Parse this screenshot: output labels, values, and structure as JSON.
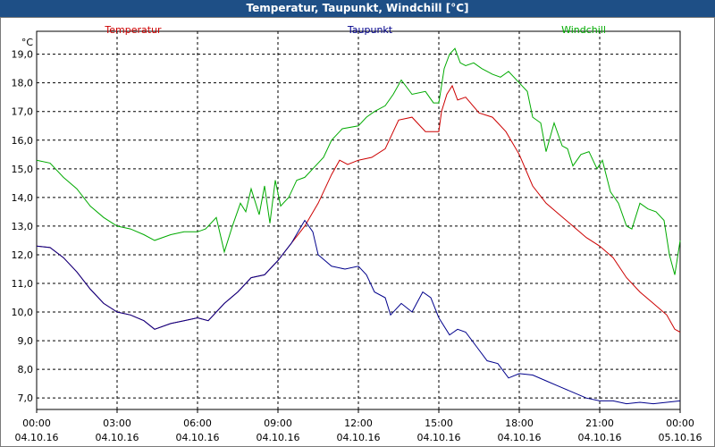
{
  "window": {
    "title": "Temperatur, Taupunkt, Windchill [°C]"
  },
  "chart_data": {
    "type": "line",
    "title": "Temperatur, Taupunkt, Windchill [°C]",
    "ylabel": "°C",
    "xlabel": "",
    "ylim": [
      6.6,
      19.8
    ],
    "xlim": [
      0,
      24
    ],
    "grid": true,
    "legend": "top",
    "y_ticks": [
      7.0,
      8.0,
      9.0,
      10.0,
      11.0,
      12.0,
      13.0,
      14.0,
      15.0,
      16.0,
      17.0,
      18.0,
      19.0
    ],
    "y_tick_labels": [
      "7,0",
      "8,0",
      "9,0",
      "10,0",
      "11,0",
      "12,0",
      "13,0",
      "14,0",
      "15,0",
      "16,0",
      "17,0",
      "18,0",
      "19,0"
    ],
    "x_ticks": [
      {
        "x": 0,
        "time": "00:00",
        "date": "04.10.16"
      },
      {
        "x": 3,
        "time": "03:00",
        "date": "04.10.16"
      },
      {
        "x": 6,
        "time": "06:00",
        "date": "04.10.16"
      },
      {
        "x": 9,
        "time": "09:00",
        "date": "04.10.16"
      },
      {
        "x": 12,
        "time": "12:00",
        "date": "04.10.16"
      },
      {
        "x": 15,
        "time": "15:00",
        "date": "04.10.16"
      },
      {
        "x": 18,
        "time": "18:00",
        "date": "04.10.16"
      },
      {
        "x": 21,
        "time": "21:00",
        "date": "04.10.16"
      },
      {
        "x": 24,
        "time": "00:00",
        "date": "05.10.16"
      }
    ],
    "series": [
      {
        "name": "Temperatur",
        "color": "#cc0000",
        "points": [
          [
            0,
            12.3
          ],
          [
            0.5,
            12.25
          ],
          [
            1,
            11.9
          ],
          [
            1.5,
            11.4
          ],
          [
            2,
            10.8
          ],
          [
            2.5,
            10.3
          ],
          [
            3,
            10.0
          ],
          [
            3.5,
            9.9
          ],
          [
            4,
            9.7
          ],
          [
            4.4,
            9.4
          ],
          [
            5,
            9.6
          ],
          [
            5.5,
            9.7
          ],
          [
            6,
            9.8
          ],
          [
            6.4,
            9.7
          ],
          [
            7,
            10.3
          ],
          [
            7.5,
            10.7
          ],
          [
            8,
            11.2
          ],
          [
            8.5,
            11.3
          ],
          [
            9,
            11.8
          ],
          [
            9.5,
            12.4
          ],
          [
            10,
            13.0
          ],
          [
            10.5,
            13.8
          ],
          [
            11,
            14.8
          ],
          [
            11.3,
            15.3
          ],
          [
            11.6,
            15.15
          ],
          [
            12,
            15.3
          ],
          [
            12.5,
            15.4
          ],
          [
            13,
            15.7
          ],
          [
            13.5,
            16.7
          ],
          [
            14,
            16.8
          ],
          [
            14.5,
            16.3
          ],
          [
            15,
            16.3
          ],
          [
            15.1,
            17.0
          ],
          [
            15.3,
            17.6
          ],
          [
            15.5,
            17.9
          ],
          [
            15.7,
            17.4
          ],
          [
            16,
            17.5
          ],
          [
            16.5,
            16.95
          ],
          [
            17,
            16.8
          ],
          [
            17.5,
            16.3
          ],
          [
            18,
            15.5
          ],
          [
            18.5,
            14.4
          ],
          [
            19,
            13.8
          ],
          [
            19.5,
            13.4
          ],
          [
            20,
            13.0
          ],
          [
            20.5,
            12.6
          ],
          [
            21,
            12.3
          ],
          [
            21.5,
            11.9
          ],
          [
            22,
            11.2
          ],
          [
            22.5,
            10.7
          ],
          [
            23,
            10.3
          ],
          [
            23.5,
            9.9
          ],
          [
            23.8,
            9.4
          ],
          [
            24,
            9.3
          ]
        ]
      },
      {
        "name": "Taupunkt",
        "color": "#00008b",
        "points": [
          [
            0,
            12.3
          ],
          [
            0.5,
            12.25
          ],
          [
            1,
            11.9
          ],
          [
            1.5,
            11.4
          ],
          [
            2,
            10.8
          ],
          [
            2.5,
            10.3
          ],
          [
            3,
            10.0
          ],
          [
            3.5,
            9.9
          ],
          [
            4,
            9.7
          ],
          [
            4.4,
            9.4
          ],
          [
            5,
            9.6
          ],
          [
            5.5,
            9.7
          ],
          [
            6,
            9.8
          ],
          [
            6.4,
            9.7
          ],
          [
            7,
            10.3
          ],
          [
            7.5,
            10.7
          ],
          [
            8,
            11.2
          ],
          [
            8.5,
            11.3
          ],
          [
            9,
            11.8
          ],
          [
            9.5,
            12.4
          ],
          [
            10,
            13.2
          ],
          [
            10.3,
            12.8
          ],
          [
            10.5,
            12.0
          ],
          [
            11,
            11.6
          ],
          [
            11.5,
            11.5
          ],
          [
            12,
            11.6
          ],
          [
            12.3,
            11.3
          ],
          [
            12.6,
            10.7
          ],
          [
            13,
            10.5
          ],
          [
            13.2,
            9.9
          ],
          [
            13.6,
            10.3
          ],
          [
            14,
            10.0
          ],
          [
            14.4,
            10.7
          ],
          [
            14.7,
            10.5
          ],
          [
            15,
            9.8
          ],
          [
            15.4,
            9.2
          ],
          [
            15.7,
            9.4
          ],
          [
            16,
            9.3
          ],
          [
            16.4,
            8.8
          ],
          [
            16.8,
            8.3
          ],
          [
            17.2,
            8.2
          ],
          [
            17.6,
            7.7
          ],
          [
            18,
            7.85
          ],
          [
            18.5,
            7.8
          ],
          [
            19,
            7.6
          ],
          [
            19.5,
            7.4
          ],
          [
            20,
            7.2
          ],
          [
            20.5,
            7.0
          ],
          [
            21,
            6.9
          ],
          [
            21.5,
            6.9
          ],
          [
            22,
            6.8
          ],
          [
            22.5,
            6.85
          ],
          [
            23,
            6.8
          ],
          [
            23.5,
            6.85
          ],
          [
            24,
            6.9
          ]
        ]
      },
      {
        "name": "Windchill",
        "color": "#00aa00",
        "points": [
          [
            0,
            15.3
          ],
          [
            0.5,
            15.2
          ],
          [
            1,
            14.7
          ],
          [
            1.5,
            14.3
          ],
          [
            2,
            13.7
          ],
          [
            2.5,
            13.3
          ],
          [
            3,
            13.0
          ],
          [
            3.5,
            12.9
          ],
          [
            4,
            12.7
          ],
          [
            4.4,
            12.5
          ],
          [
            5,
            12.7
          ],
          [
            5.5,
            12.8
          ],
          [
            6,
            12.8
          ],
          [
            6.3,
            12.9
          ],
          [
            6.7,
            13.3
          ],
          [
            7,
            12.1
          ],
          [
            7.3,
            13.0
          ],
          [
            7.6,
            13.8
          ],
          [
            7.8,
            13.5
          ],
          [
            8,
            14.3
          ],
          [
            8.3,
            13.4
          ],
          [
            8.5,
            14.4
          ],
          [
            8.7,
            13.1
          ],
          [
            8.9,
            14.6
          ],
          [
            9.1,
            13.7
          ],
          [
            9.4,
            14.0
          ],
          [
            9.7,
            14.6
          ],
          [
            10,
            14.7
          ],
          [
            10.3,
            15.0
          ],
          [
            10.7,
            15.4
          ],
          [
            11,
            16.0
          ],
          [
            11.4,
            16.4
          ],
          [
            12,
            16.5
          ],
          [
            12.3,
            16.8
          ],
          [
            12.6,
            17.0
          ],
          [
            13,
            17.2
          ],
          [
            13.3,
            17.6
          ],
          [
            13.6,
            18.1
          ],
          [
            14,
            17.6
          ],
          [
            14.5,
            17.7
          ],
          [
            14.8,
            17.3
          ],
          [
            15,
            17.3
          ],
          [
            15.2,
            18.5
          ],
          [
            15.4,
            19.0
          ],
          [
            15.6,
            19.2
          ],
          [
            15.8,
            18.7
          ],
          [
            16,
            18.6
          ],
          [
            16.3,
            18.7
          ],
          [
            16.6,
            18.5
          ],
          [
            17,
            18.3
          ],
          [
            17.3,
            18.2
          ],
          [
            17.6,
            18.4
          ],
          [
            18,
            18.0
          ],
          [
            18.3,
            17.7
          ],
          [
            18.5,
            16.8
          ],
          [
            18.8,
            16.6
          ],
          [
            19,
            15.6
          ],
          [
            19.3,
            16.6
          ],
          [
            19.6,
            15.8
          ],
          [
            19.8,
            15.7
          ],
          [
            20,
            15.1
          ],
          [
            20.3,
            15.5
          ],
          [
            20.6,
            15.6
          ],
          [
            20.9,
            15.0
          ],
          [
            21.1,
            15.3
          ],
          [
            21.4,
            14.2
          ],
          [
            21.7,
            13.8
          ],
          [
            22,
            13.0
          ],
          [
            22.2,
            12.9
          ],
          [
            22.5,
            13.8
          ],
          [
            22.8,
            13.6
          ],
          [
            23.1,
            13.5
          ],
          [
            23.4,
            13.2
          ],
          [
            23.6,
            12.0
          ],
          [
            23.8,
            11.3
          ],
          [
            24,
            12.5
          ]
        ]
      }
    ]
  }
}
